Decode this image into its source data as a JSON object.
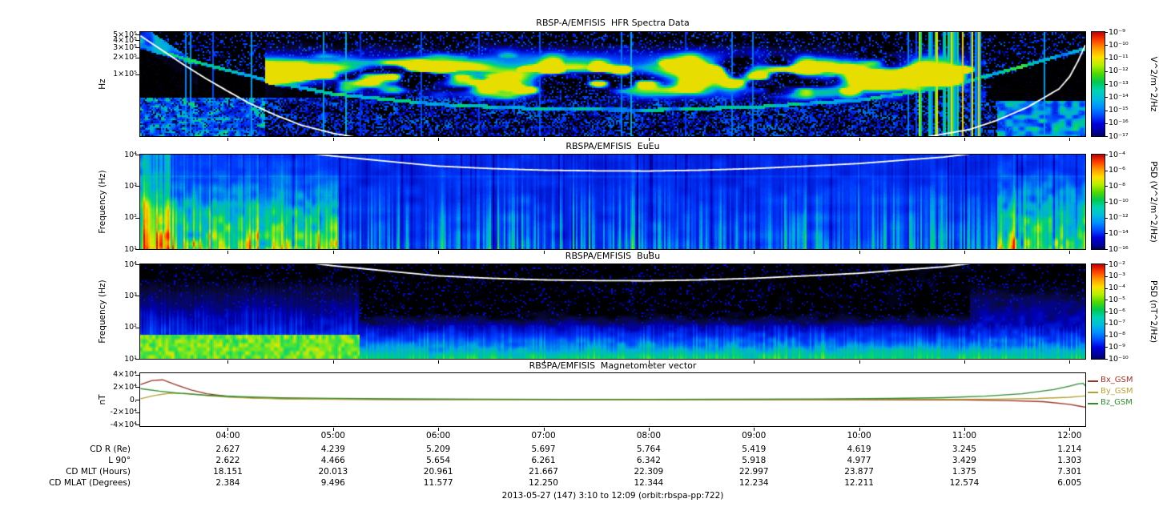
{
  "window": {
    "caption": "2013-05-27 (147) 3:10 to 12:09 (orbit:rbspa-pp:722)"
  },
  "time_axis": {
    "start_label": "3:10",
    "end_label": "12:09",
    "start_hour": 3.1667,
    "end_hour": 12.15,
    "ticks": [
      {
        "hour": 4,
        "label": "04:00"
      },
      {
        "hour": 5,
        "label": "05:00"
      },
      {
        "hour": 6,
        "label": "06:00"
      },
      {
        "hour": 7,
        "label": "07:00"
      },
      {
        "hour": 8,
        "label": "08:00"
      },
      {
        "hour": 9,
        "label": "09:00"
      },
      {
        "hour": 10,
        "label": "10:00"
      },
      {
        "hour": 11,
        "label": "11:00"
      },
      {
        "hour": 12,
        "label": "12:00"
      }
    ]
  },
  "annotations": {
    "rows": [
      {
        "label": "CD R (Re)",
        "values": [
          "2.627",
          "4.239",
          "5.209",
          "5.697",
          "5.764",
          "5.419",
          "4.619",
          "3.245",
          "1.214"
        ]
      },
      {
        "label": "L 90°",
        "values": [
          "2.622",
          "4.466",
          "5.654",
          "6.261",
          "6.342",
          "5.918",
          "4.977",
          "3.429",
          "1.303"
        ]
      },
      {
        "label": "CD MLT (Hours)",
        "values": [
          "18.151",
          "20.013",
          "20.961",
          "21.667",
          "22.309",
          "22.997",
          "23.877",
          "1.375",
          "7.301"
        ]
      },
      {
        "label": "CD MLAT (Degrees)",
        "values": [
          "2.384",
          "9.496",
          "11.577",
          "12.250",
          "12.344",
          "12.234",
          "12.211",
          "12.574",
          "6.005"
        ]
      }
    ]
  },
  "chart_data": [
    {
      "type": "heatmap",
      "texture": "hfr",
      "title": "RBSP-A/EMFISIS  HFR Spectra Data",
      "ylabel": "Hz",
      "yscale": "log",
      "ylim": [
        8000,
        560000
      ],
      "yticks": [
        {
          "v": 500000,
          "label": "5×10⁵"
        },
        {
          "v": 400000,
          "label": "4×10⁵"
        },
        {
          "v": 300000,
          "label": "3×10⁵"
        },
        {
          "v": 200000,
          "label": "2×10⁵"
        },
        {
          "v": 100000,
          "label": "1×10⁵"
        }
      ],
      "colorbar": {
        "label": "V^2/m^2/Hz",
        "colormap": "rainbow",
        "tick_labels": [
          "10⁻⁹",
          "10⁻¹⁰",
          "10⁻¹¹",
          "10⁻¹²",
          "10⁻¹³",
          "10⁻¹⁴",
          "10⁻¹⁵",
          "10⁻¹⁶",
          "10⁻¹⁷"
        ]
      },
      "overlay": {
        "name": "electron-cyclotron-frequency-line",
        "color": "#ffffff",
        "points_hz": [
          [
            3.17,
            480000
          ],
          [
            3.3,
            330000
          ],
          [
            3.45,
            215000
          ],
          [
            3.6,
            140000
          ],
          [
            3.8,
            82000
          ],
          [
            4.0,
            50000
          ],
          [
            4.2,
            31000
          ],
          [
            4.45,
            19000
          ],
          [
            4.7,
            12500
          ],
          [
            5.0,
            9000
          ],
          [
            5.5,
            6200
          ],
          [
            6.0,
            4300
          ],
          [
            7.0,
            3200
          ],
          [
            8.0,
            3000
          ],
          [
            9.0,
            3600
          ],
          [
            10.0,
            5200
          ],
          [
            10.6,
            7500
          ],
          [
            11.05,
            10500
          ],
          [
            11.3,
            15000
          ],
          [
            11.6,
            26000
          ],
          [
            11.9,
            55000
          ],
          [
            12.0,
            90000
          ],
          [
            12.08,
            170000
          ],
          [
            12.15,
            330000
          ]
        ]
      },
      "trace_line_hz": [
        [
          3.2,
          320000
        ],
        [
          3.6,
          190000
        ],
        [
          4.0,
          120000
        ],
        [
          4.5,
          70000
        ],
        [
          5.0,
          46000
        ],
        [
          6.0,
          30000
        ],
        [
          7.0,
          25000
        ],
        [
          8.0,
          24000
        ],
        [
          9.0,
          27000
        ],
        [
          10.0,
          36000
        ],
        [
          10.8,
          60000
        ],
        [
          11.4,
          120000
        ],
        [
          12.1,
          280000
        ]
      ]
    },
    {
      "type": "heatmap",
      "texture": "eueu",
      "title": "RBSPA/EMFISIS  EuEu",
      "ylabel": "Frequency (Hz)",
      "yscale": "log",
      "ylim": [
        10,
        10000
      ],
      "yticks": [
        {
          "v": 10000,
          "label": "10⁴"
        },
        {
          "v": 1000,
          "label": "10³"
        },
        {
          "v": 100,
          "label": "10²"
        },
        {
          "v": 10,
          "label": "10¹"
        }
      ],
      "colorbar": {
        "label": "PSD (V^2/m^2/Hz)",
        "colormap": "rainbow",
        "tick_labels": [
          "10⁻⁴",
          "10⁻⁶",
          "10⁻⁸",
          "10⁻¹⁰",
          "10⁻¹²",
          "10⁻¹⁴",
          "10⁻¹⁶"
        ]
      },
      "overlay": {
        "name": "electron-cyclotron-frequency-line",
        "color": "#ffffff",
        "points_hz": [
          [
            4.6,
            13000
          ],
          [
            4.8,
            10800
          ],
          [
            5.0,
            9000
          ],
          [
            5.5,
            6200
          ],
          [
            6.0,
            4300
          ],
          [
            6.5,
            3600
          ],
          [
            7.0,
            3200
          ],
          [
            7.5,
            3050
          ],
          [
            8.0,
            3000
          ],
          [
            8.5,
            3200
          ],
          [
            9.0,
            3600
          ],
          [
            9.5,
            4300
          ],
          [
            10.0,
            5200
          ],
          [
            10.5,
            7000
          ],
          [
            10.8,
            8300
          ],
          [
            11.05,
            10500
          ],
          [
            11.3,
            15000
          ]
        ]
      }
    },
    {
      "type": "heatmap",
      "texture": "bubu",
      "title": "RBSPA/EMFISIS  BuBu",
      "ylabel": "Frequency (Hz)",
      "yscale": "log",
      "ylim": [
        10,
        10000
      ],
      "yticks": [
        {
          "v": 10000,
          "label": "10⁴"
        },
        {
          "v": 1000,
          "label": "10³"
        },
        {
          "v": 100,
          "label": "10²"
        },
        {
          "v": 10,
          "label": "10¹"
        }
      ],
      "colorbar": {
        "label": "PSD (nT^2/Hz)",
        "colormap": "rainbow",
        "tick_labels": [
          "10⁻²",
          "10⁻³",
          "10⁻⁴",
          "10⁻⁵",
          "10⁻⁶",
          "10⁻⁷",
          "10⁻⁸",
          "10⁻⁹",
          "10⁻¹⁰"
        ]
      },
      "overlay": {
        "name": "electron-cyclotron-frequency-line",
        "color": "#ffffff",
        "points_hz": [
          [
            4.6,
            13000
          ],
          [
            4.8,
            10800
          ],
          [
            5.0,
            9000
          ],
          [
            5.5,
            6200
          ],
          [
            6.0,
            4300
          ],
          [
            6.5,
            3600
          ],
          [
            7.0,
            3200
          ],
          [
            7.5,
            3050
          ],
          [
            8.0,
            3000
          ],
          [
            8.5,
            3200
          ],
          [
            9.0,
            3600
          ],
          [
            9.5,
            4300
          ],
          [
            10.0,
            5200
          ],
          [
            10.5,
            7000
          ],
          [
            10.8,
            8300
          ],
          [
            11.05,
            10500
          ],
          [
            11.3,
            15000
          ]
        ]
      }
    },
    {
      "type": "line",
      "title": "RBSPA/EMFISIS  Magnetometer vector",
      "ylabel": "nT",
      "ylim": [
        -42000,
        42000
      ],
      "yticks": [
        {
          "v": 40000,
          "label": "4×10⁴"
        },
        {
          "v": 20000,
          "label": "2×10⁴"
        },
        {
          "v": 0,
          "label": "0."
        },
        {
          "v": -20000,
          "label": "-2×10⁴"
        },
        {
          "v": -40000,
          "label": "-4×10⁴"
        }
      ],
      "series": [
        {
          "name": "Bx_GSM",
          "color": "#993326",
          "points": [
            [
              3.17,
              24000
            ],
            [
              3.28,
              30500
            ],
            [
              3.38,
              31500
            ],
            [
              3.5,
              24000
            ],
            [
              3.65,
              15500
            ],
            [
              3.8,
              9500
            ],
            [
              4.0,
              5200
            ],
            [
              4.25,
              2800
            ],
            [
              4.55,
              1500
            ],
            [
              5.0,
              700
            ],
            [
              5.6,
              300
            ],
            [
              6.5,
              100
            ],
            [
              7.5,
              0
            ],
            [
              8.5,
              -50
            ],
            [
              9.5,
              -100
            ],
            [
              10.5,
              -300
            ],
            [
              11.0,
              -600
            ],
            [
              11.4,
              -1400
            ],
            [
              11.75,
              -3200
            ],
            [
              12.0,
              -7500
            ],
            [
              12.1,
              -10500
            ],
            [
              12.15,
              -12000
            ]
          ]
        },
        {
          "name": "By_GSM",
          "color": "#b2a434",
          "points": [
            [
              3.17,
              1500
            ],
            [
              3.3,
              6500
            ],
            [
              3.45,
              10500
            ],
            [
              3.6,
              10000
            ],
            [
              3.8,
              6500
            ],
            [
              4.0,
              4000
            ],
            [
              4.3,
              2000
            ],
            [
              4.7,
              900
            ],
            [
              5.2,
              400
            ],
            [
              6.0,
              150
            ],
            [
              7.0,
              50
            ],
            [
              8.0,
              0
            ],
            [
              9.0,
              50
            ],
            [
              10.0,
              150
            ],
            [
              10.8,
              400
            ],
            [
              11.3,
              900
            ],
            [
              11.7,
              1900
            ],
            [
              12.0,
              3800
            ],
            [
              12.1,
              5200
            ],
            [
              12.15,
              6000
            ]
          ]
        },
        {
          "name": "Bz_GSM",
          "color": "#2e8b2e",
          "points": [
            [
              3.17,
              17500
            ],
            [
              3.35,
              13500
            ],
            [
              3.55,
              10000
            ],
            [
              3.8,
              7000
            ],
            [
              4.1,
              4800
            ],
            [
              4.5,
              3100
            ],
            [
              5.0,
              2000
            ],
            [
              5.6,
              1300
            ],
            [
              6.4,
              800
            ],
            [
              7.2,
              600
            ],
            [
              8.0,
              600
            ],
            [
              8.8,
              700
            ],
            [
              9.6,
              1100
            ],
            [
              10.3,
              1900
            ],
            [
              10.8,
              3200
            ],
            [
              11.2,
              5500
            ],
            [
              11.55,
              9500
            ],
            [
              11.85,
              16000
            ],
            [
              12.0,
              21500
            ],
            [
              12.08,
              25000
            ],
            [
              12.13,
              26000
            ],
            [
              12.15,
              22000
            ]
          ]
        }
      ],
      "legend": [
        "Bx_GSM",
        "By_GSM",
        "Bz_GSM"
      ]
    }
  ]
}
